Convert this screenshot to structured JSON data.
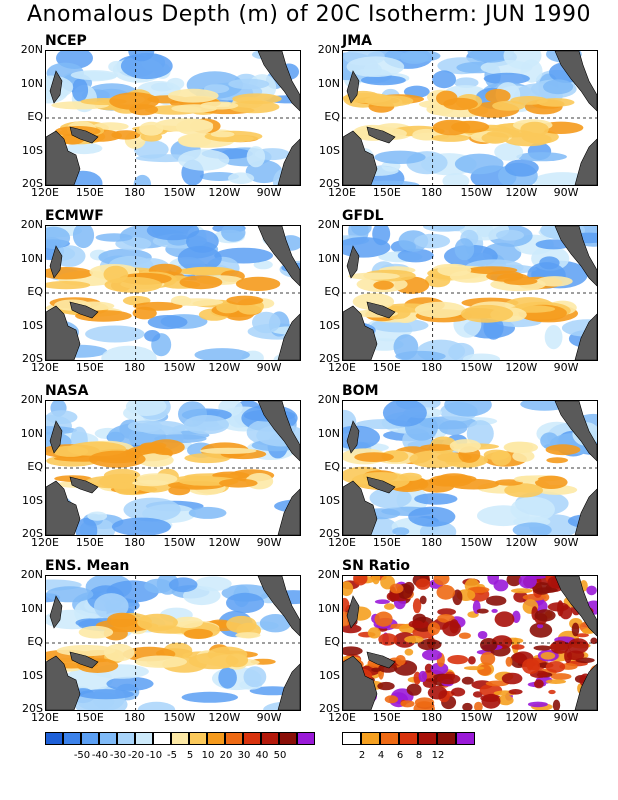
{
  "title": "Anomalous Depth (m) of 20C Isotherm: JUN 1990",
  "latitude_labels": [
    "20N",
    "10N",
    "EQ",
    "10S",
    "20S"
  ],
  "longitude_labels": [
    "120E",
    "150E",
    "180",
    "150W",
    "120W",
    "90W"
  ],
  "panels": [
    {
      "label": "NCEP"
    },
    {
      "label": "JMA"
    },
    {
      "label": "ECMWF"
    },
    {
      "label": "GFDL"
    },
    {
      "label": "NASA"
    },
    {
      "label": "BOM"
    },
    {
      "label": "ENS. Mean"
    },
    {
      "label": "SN Ratio"
    }
  ],
  "anomaly_legend": {
    "colors": [
      "#1e60d8",
      "#3c82ea",
      "#5b9ff3",
      "#7fbaf7",
      "#a8d4fa",
      "#cdeafb",
      "#ffffff",
      "#fde9a6",
      "#fbc95a",
      "#f59a1c",
      "#ee6a14",
      "#d8330e",
      "#b41a0c",
      "#8a0f08",
      "#9a1ad8"
    ],
    "labels": [
      "-50",
      "-40",
      "-30",
      "-20",
      "-10",
      "-5",
      "5",
      "10",
      "20",
      "30",
      "40",
      "50"
    ]
  },
  "sn_legend": {
    "colors": [
      "#ffffff",
      "#f5a020",
      "#ee6a14",
      "#d8330e",
      "#a8110a",
      "#8a0f08",
      "#9a1ad8"
    ],
    "labels": [
      "2",
      "4",
      "6",
      "8",
      "12"
    ]
  }
}
